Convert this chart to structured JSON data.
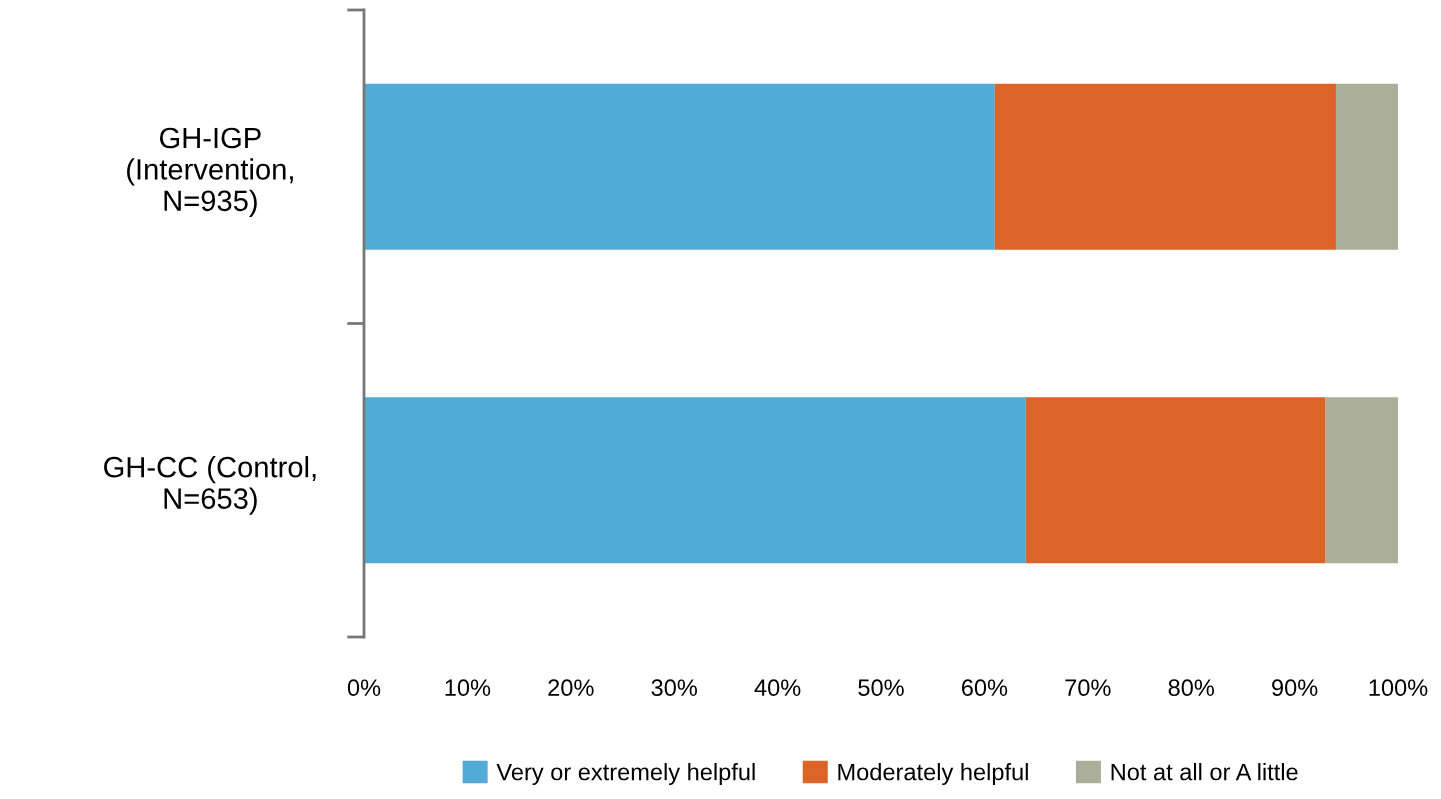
{
  "chart_data": {
    "type": "bar",
    "orientation": "horizontal",
    "stacked": true,
    "categories": [
      "GH-IGP\n(Intervention,\nN=935)",
      "GH-CC (Control,\nN=653)"
    ],
    "series": [
      {
        "name": "Very or extremely helpful",
        "color": "#52abd6",
        "values": [
          61,
          64
        ]
      },
      {
        "name": "Moderately helpful",
        "color": "#dc6428",
        "values": [
          33,
          29
        ]
      },
      {
        "name": "Not at all or A little",
        "color": "#abae99",
        "values": [
          6,
          7
        ]
      }
    ],
    "xlim": [
      0,
      100
    ],
    "xticks": [
      {
        "value": 0,
        "label": "0%"
      },
      {
        "value": 10,
        "label": "10%"
      },
      {
        "value": 20,
        "label": "20%"
      },
      {
        "value": 30,
        "label": "30%"
      },
      {
        "value": 40,
        "label": "40%"
      },
      {
        "value": 50,
        "label": "50%"
      },
      {
        "value": 60,
        "label": "60%"
      },
      {
        "value": 70,
        "label": "70%"
      },
      {
        "value": 80,
        "label": "80%"
      },
      {
        "value": 90,
        "label": "90%"
      },
      {
        "value": 100,
        "label": "100%"
      }
    ],
    "legend": "bottom",
    "grid": false
  }
}
